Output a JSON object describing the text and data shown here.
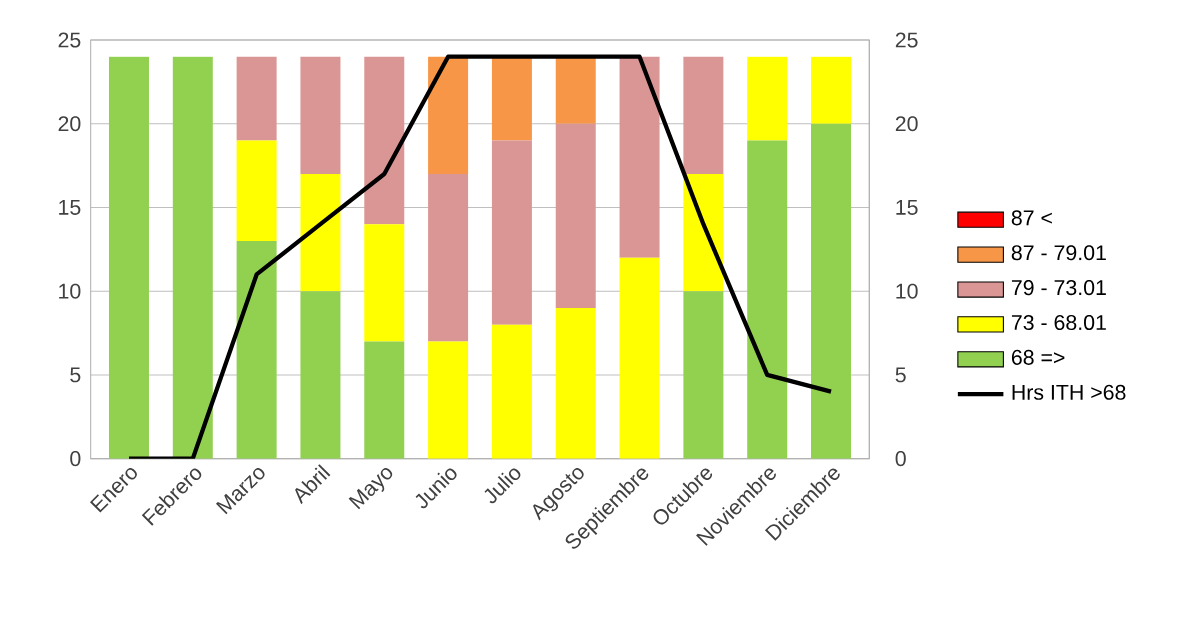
{
  "chart_data": {
    "type": "bar",
    "stacked": true,
    "categories": [
      "Enero",
      "Febrero",
      "Marzo",
      "Abril",
      "Mayo",
      "Junio",
      "Julio",
      "Agosto",
      "Septiembre",
      "Octubre",
      "Noviembre",
      "Diciembre"
    ],
    "series": [
      {
        "name": "68 =>",
        "color": "#92d050",
        "values": [
          24,
          24,
          13,
          10,
          7,
          0,
          0,
          0,
          0,
          10,
          19,
          20
        ]
      },
      {
        "name": "73 - 68.01",
        "color": "#ffff00",
        "values": [
          0,
          0,
          6,
          7,
          7,
          7,
          8,
          9,
          12,
          7,
          5,
          4
        ]
      },
      {
        "name": "79 - 73.01",
        "color": "#da9694",
        "values": [
          0,
          0,
          5,
          7,
          10,
          10,
          11,
          11,
          12,
          7,
          0,
          0
        ]
      },
      {
        "name": "87 - 79.01",
        "color": "#f79646",
        "values": [
          0,
          0,
          0,
          0,
          0,
          7,
          5,
          4,
          0,
          0,
          0,
          0
        ]
      },
      {
        "name": "87 <",
        "color": "#ff0000",
        "values": [
          0,
          0,
          0,
          0,
          0,
          0,
          0,
          0,
          0,
          0,
          0,
          0
        ]
      },
      {
        "name": "Hrs ITH >68",
        "type": "line",
        "color": "#000000",
        "values": [
          0,
          0,
          11,
          14,
          17,
          24,
          24,
          24,
          24,
          14,
          5,
          4
        ]
      }
    ],
    "ylim": [
      0,
      25
    ],
    "yticks": [
      0,
      5,
      10,
      15,
      20,
      25
    ],
    "y2lim": [
      0,
      25
    ],
    "y2ticks": [
      0,
      5,
      10,
      15,
      20,
      25
    ],
    "grid": "y",
    "legend": "right",
    "marker": "none",
    "line_style": "solid"
  }
}
